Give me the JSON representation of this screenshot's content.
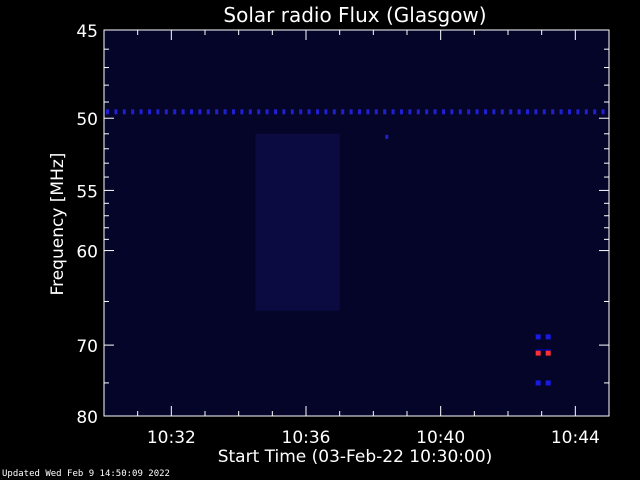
{
  "chart_data": {
    "type": "heatmap",
    "title": "Solar radio Flux (Glasgow)",
    "xlabel": "Start Time (03-Feb-22 10:30:00)",
    "ylabel": "Frequency [MHz]",
    "x_ticks": [
      "10:32",
      "10:36",
      "10:40",
      "10:44"
    ],
    "x_tick_minutes": [
      2,
      6,
      10,
      14
    ],
    "xlim_minutes": [
      0,
      15
    ],
    "y_ticks": [
      45,
      50,
      55,
      60,
      70,
      80
    ],
    "ylim": [
      45,
      80
    ],
    "y_scale": "reciprocal",
    "colormap": "dark-blue-to-red",
    "features": [
      {
        "kind": "horizontal-line",
        "freq": 49.6,
        "t_start": 0,
        "t_end": 15,
        "level": "medium"
      },
      {
        "kind": "patch",
        "freq_low": 51,
        "freq_high": 66,
        "t_start": 4.5,
        "t_end": 7,
        "level": "low"
      },
      {
        "kind": "burst",
        "t": 13.0,
        "freqs": [
          69,
          71,
          75
        ],
        "peak_freq": 71,
        "level": "high"
      },
      {
        "kind": "dot",
        "t": 8.4,
        "freq": 51.2,
        "level": "medium"
      }
    ]
  },
  "footer": {
    "updated": "Updated Wed Feb  9 14:50:09 2022"
  },
  "colors": {
    "background": "#000000",
    "plot_base": "#05052a",
    "axis": "#ffffff",
    "line": "#2020d0",
    "burst_hot": "#ff3030"
  }
}
